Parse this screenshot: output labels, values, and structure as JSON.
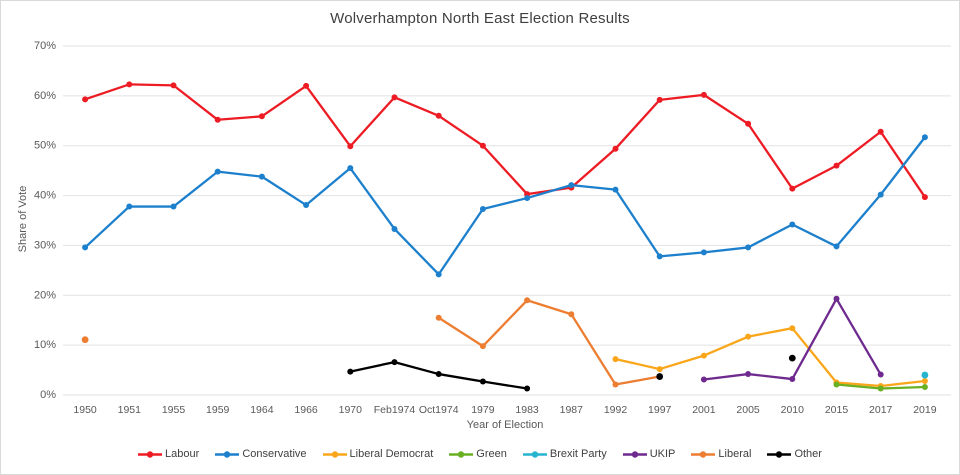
{
  "frame": {
    "border_color": "#d9d9d9",
    "background": "#ffffff"
  },
  "chart_data": {
    "type": "line",
    "title": "Wolverhampton North East Election Results",
    "xlabel": "Year of Election",
    "ylabel": "Share of Vote",
    "ylim": [
      0,
      70
    ],
    "ytick_step": 10,
    "ytick_suffix": "%",
    "grid": true,
    "gridline_color": "#e2e2e2",
    "tick_label_color": "#595959",
    "legend_position": "bottom",
    "categories": [
      "1950",
      "1951",
      "1955",
      "1959",
      "1964",
      "1966",
      "1970",
      "Feb1974",
      "Oct1974",
      "1979",
      "1983",
      "1987",
      "1992",
      "1997",
      "2001",
      "2005",
      "2010",
      "2015",
      "2017",
      "2019"
    ],
    "series": [
      {
        "name": "Labour",
        "color": "#ed1c24",
        "values": [
          59.3,
          62.3,
          62.1,
          55.2,
          55.9,
          62.0,
          49.9,
          59.7,
          56.0,
          50.0,
          40.3,
          41.6,
          49.4,
          59.2,
          60.2,
          54.4,
          41.4,
          46.0,
          52.8,
          39.7
        ]
      },
      {
        "name": "Conservative",
        "color": "#1d80cd",
        "values": [
          29.6,
          37.8,
          37.8,
          44.8,
          43.8,
          38.1,
          45.5,
          33.3,
          24.2,
          37.3,
          39.5,
          42.1,
          41.2,
          27.8,
          28.6,
          29.6,
          34.2,
          29.8,
          40.2,
          51.7
        ]
      },
      {
        "name": "Liberal Democrat",
        "color": "#faa61a",
        "values": [
          null,
          null,
          null,
          null,
          null,
          null,
          null,
          null,
          null,
          null,
          null,
          null,
          7.2,
          5.2,
          7.9,
          11.7,
          13.4,
          2.5,
          1.8,
          2.8
        ]
      },
      {
        "name": "Green",
        "color": "#6ab023",
        "values": [
          null,
          null,
          null,
          null,
          null,
          null,
          null,
          null,
          null,
          null,
          null,
          null,
          null,
          null,
          null,
          null,
          null,
          2.1,
          1.3,
          1.6
        ]
      },
      {
        "name": "Brexit Party",
        "color": "#27b4cf",
        "values": [
          null,
          null,
          null,
          null,
          null,
          null,
          null,
          null,
          null,
          null,
          null,
          null,
          null,
          null,
          null,
          null,
          null,
          null,
          null,
          4.0
        ]
      },
      {
        "name": "UKIP",
        "color": "#6e2a8e",
        "values": [
          null,
          null,
          null,
          null,
          null,
          null,
          null,
          null,
          null,
          null,
          null,
          null,
          null,
          null,
          3.1,
          4.2,
          3.2,
          19.3,
          4.1,
          null
        ]
      },
      {
        "name": "Liberal",
        "color": "#ed7d31",
        "values": [
          11.1,
          null,
          null,
          null,
          null,
          null,
          null,
          null,
          15.5,
          9.8,
          19.0,
          16.2,
          2.1,
          3.7,
          null,
          null,
          null,
          null,
          null,
          null
        ]
      },
      {
        "name": "Other",
        "color": "#000000",
        "values": [
          null,
          null,
          null,
          null,
          null,
          null,
          4.7,
          6.6,
          4.2,
          2.7,
          1.3,
          null,
          null,
          3.7,
          null,
          null,
          7.4,
          null,
          null,
          null
        ]
      }
    ]
  }
}
